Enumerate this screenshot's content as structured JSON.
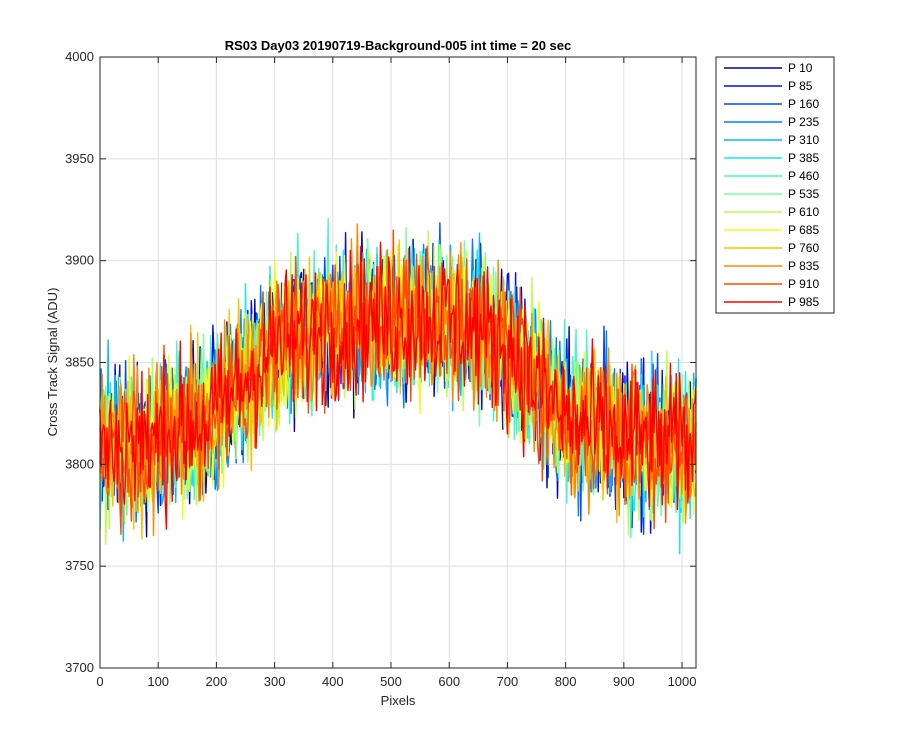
{
  "chart_data": {
    "type": "line",
    "title": "RS03 Day03 20190719-Background-005 int time = 20 sec",
    "xlabel": "Pixels",
    "ylabel": "Cross Track Signal (ADU)",
    "xlim": [
      0,
      1024
    ],
    "ylim": [
      3700,
      4000
    ],
    "xticks": [
      0,
      100,
      200,
      300,
      400,
      500,
      600,
      700,
      800,
      900,
      1000
    ],
    "yticks": [
      3700,
      3750,
      3800,
      3850,
      3900,
      3950,
      4000
    ],
    "grid": true,
    "legend_position": "outside-top-right",
    "profile": {
      "x": [
        0,
        100,
        200,
        300,
        400,
        500,
        600,
        700,
        800,
        900,
        1000,
        1024
      ],
      "y": [
        3810,
        3812,
        3825,
        3858,
        3868,
        3872,
        3872,
        3858,
        3822,
        3812,
        3810,
        3812
      ]
    },
    "noise_amplitude_adu": 40,
    "series": [
      {
        "name": "P 10",
        "color": "#0000b4"
      },
      {
        "name": "P 85",
        "color": "#0011e6"
      },
      {
        "name": "P 160",
        "color": "#0048f8"
      },
      {
        "name": "P 235",
        "color": "#0080ff"
      },
      {
        "name": "P 310",
        "color": "#00bcff"
      },
      {
        "name": "P 385",
        "color": "#1ae6f0"
      },
      {
        "name": "P 460",
        "color": "#46f8c8"
      },
      {
        "name": "P 535",
        "color": "#78ff9a"
      },
      {
        "name": "P 610",
        "color": "#bcff4a"
      },
      {
        "name": "P 685",
        "color": "#eeff14"
      },
      {
        "name": "P 760",
        "color": "#ffc000"
      },
      {
        "name": "P 835",
        "color": "#ff8a00"
      },
      {
        "name": "P 910",
        "color": "#ff4a00"
      },
      {
        "name": "P 985",
        "color": "#ff0000"
      }
    ]
  }
}
